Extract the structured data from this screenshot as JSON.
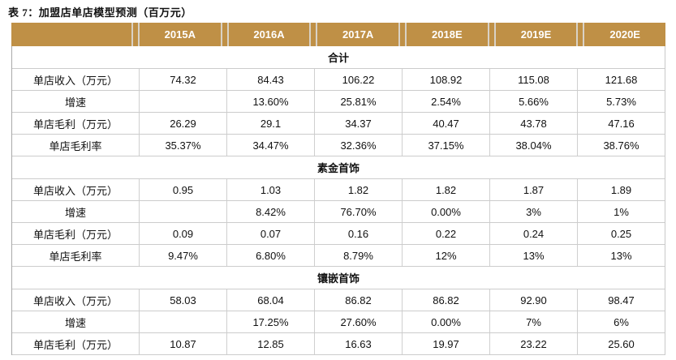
{
  "title": "表 7：加盟店单店模型预测（百万元）",
  "table": {
    "columns": [
      "",
      "2015A",
      "2016A",
      "2017A",
      "2018E",
      "2019E",
      "2020E"
    ],
    "sections": [
      {
        "name": "合计",
        "rows": [
          {
            "label": "单店收入（万元）",
            "values": [
              "74.32",
              "84.43",
              "106.22",
              "108.92",
              "115.08",
              "121.68"
            ]
          },
          {
            "label": "增速",
            "values": [
              "",
              "13.60%",
              "25.81%",
              "2.54%",
              "5.66%",
              "5.73%"
            ]
          },
          {
            "label": "单店毛利（万元）",
            "values": [
              "26.29",
              "29.1",
              "34.37",
              "40.47",
              "43.78",
              "47.16"
            ]
          },
          {
            "label": "单店毛利率",
            "values": [
              "35.37%",
              "34.47%",
              "32.36%",
              "37.15%",
              "38.04%",
              "38.76%"
            ]
          }
        ]
      },
      {
        "name": "素金首饰",
        "rows": [
          {
            "label": "单店收入（万元）",
            "values": [
              "0.95",
              "1.03",
              "1.82",
              "1.82",
              "1.87",
              "1.89"
            ]
          },
          {
            "label": "增速",
            "values": [
              "",
              "8.42%",
              "76.70%",
              "0.00%",
              "3%",
              "1%"
            ]
          },
          {
            "label": "单店毛利（万元）",
            "values": [
              "0.09",
              "0.07",
              "0.16",
              "0.22",
              "0.24",
              "0.25"
            ]
          },
          {
            "label": "单店毛利率",
            "values": [
              "9.47%",
              "6.80%",
              "8.79%",
              "12%",
              "13%",
              "13%"
            ]
          }
        ]
      },
      {
        "name": "镶嵌首饰",
        "rows": [
          {
            "label": "单店收入（万元）",
            "values": [
              "58.03",
              "68.04",
              "86.82",
              "86.82",
              "92.90",
              "98.47"
            ]
          },
          {
            "label": "增速",
            "values": [
              "",
              "17.25%",
              "27.60%",
              "0.00%",
              "7%",
              "6%"
            ]
          },
          {
            "label": "单店毛利（万元）",
            "values": [
              "10.87",
              "12.85",
              "16.63",
              "19.97",
              "23.22",
              "25.60"
            ]
          }
        ]
      }
    ]
  },
  "colors": {
    "header_bg": "#BF9046",
    "header_separator": "#D9D2C6",
    "header_text": "#FFFFFF",
    "grid_line": "#CCCCCC",
    "outer_border": "#A9A9A9",
    "text": "#111111"
  }
}
